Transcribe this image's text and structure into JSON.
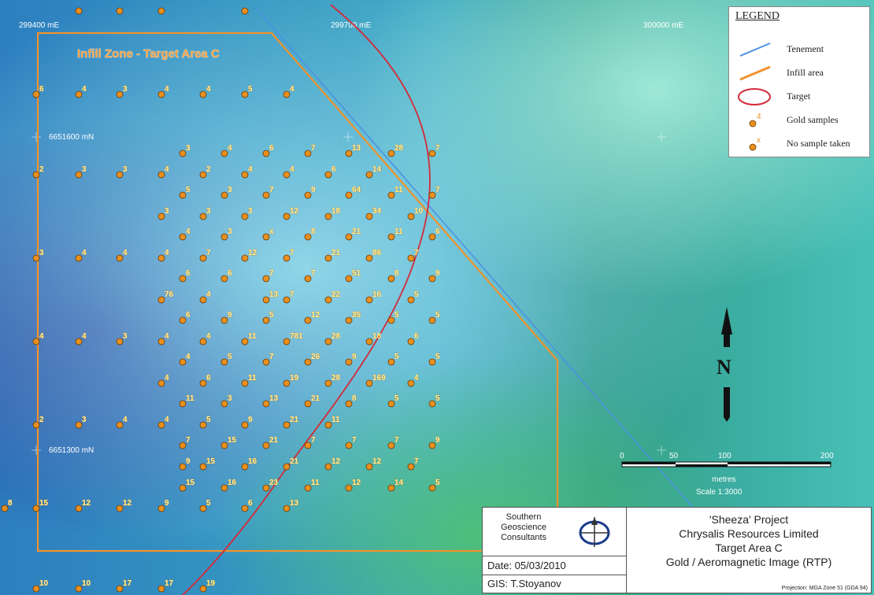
{
  "map": {
    "grid_labels": {
      "easting": [
        "299400 mE",
        "299700 mE",
        "300000 mE"
      ],
      "northing": [
        "6651600 mN",
        "6651300 mN"
      ]
    },
    "zone_title": "Infill Zone - Target Area C",
    "north_arrow_label": "N",
    "scale_bar": {
      "ticks": [
        "0",
        "50",
        "100",
        "200"
      ],
      "unit": "metres",
      "scale_text": "Scale 1:3000"
    },
    "colors": {
      "tenement": "#4a90e2",
      "infill": "#f0922c",
      "target": "#d42a3a",
      "sample_dot": "#e8901e"
    },
    "samples": [
      {
        "v": "6"
      },
      {
        "v": "4"
      },
      {
        "v": "3"
      },
      {
        "v": "4"
      },
      {
        "v": "4"
      },
      {
        "v": "5"
      },
      {
        "v": "4"
      },
      {
        "v": "3"
      },
      {
        "v": "4"
      },
      {
        "v": "6"
      },
      {
        "v": "7"
      },
      {
        "v": "13"
      },
      {
        "v": "28"
      },
      {
        "v": "7"
      },
      {
        "v": "2"
      },
      {
        "v": "3"
      },
      {
        "v": "3"
      },
      {
        "v": "4"
      },
      {
        "v": "2"
      },
      {
        "v": "4"
      },
      {
        "v": "4"
      },
      {
        "v": "6"
      },
      {
        "v": "14"
      },
      {
        "v": "5"
      },
      {
        "v": "3"
      },
      {
        "v": "7"
      },
      {
        "v": "9"
      },
      {
        "v": "64"
      },
      {
        "v": "11"
      },
      {
        "v": "7"
      },
      {
        "v": "3"
      },
      {
        "v": "3"
      },
      {
        "v": "3"
      },
      {
        "v": "12"
      },
      {
        "v": "18"
      },
      {
        "v": "34"
      },
      {
        "v": "10"
      },
      {
        "v": "4"
      },
      {
        "v": "3"
      },
      {
        "v": "x"
      },
      {
        "v": "8"
      },
      {
        "v": "21"
      },
      {
        "v": "11"
      },
      {
        "v": "6"
      },
      {
        "v": "3"
      },
      {
        "v": "4"
      },
      {
        "v": "4"
      },
      {
        "v": "4"
      },
      {
        "v": "7"
      },
      {
        "v": "12"
      },
      {
        "v": "7"
      },
      {
        "v": "21"
      },
      {
        "v": "86"
      },
      {
        "v": "7"
      },
      {
        "v": "6"
      },
      {
        "v": "6"
      },
      {
        "v": "7"
      },
      {
        "v": "7"
      },
      {
        "v": "51"
      },
      {
        "v": "8"
      },
      {
        "v": "9"
      },
      {
        "v": "76"
      },
      {
        "v": "4"
      },
      {
        "v": "13"
      },
      {
        "v": "7"
      },
      {
        "v": "22"
      },
      {
        "v": "16"
      },
      {
        "v": "5"
      },
      {
        "v": "6"
      },
      {
        "v": "9"
      },
      {
        "v": "5"
      },
      {
        "v": "12"
      },
      {
        "v": "35"
      },
      {
        "v": "5"
      },
      {
        "v": "5"
      },
      {
        "v": "4"
      },
      {
        "v": "4"
      },
      {
        "v": "3"
      },
      {
        "v": "4"
      },
      {
        "v": "4"
      },
      {
        "v": "11"
      },
      {
        "v": "781"
      },
      {
        "v": "28"
      },
      {
        "v": "18"
      },
      {
        "v": "6"
      },
      {
        "v": "4"
      },
      {
        "v": "5"
      },
      {
        "v": "7"
      },
      {
        "v": "26"
      },
      {
        "v": "9"
      },
      {
        "v": "5"
      },
      {
        "v": "5"
      },
      {
        "v": "4"
      },
      {
        "v": "6"
      },
      {
        "v": "11"
      },
      {
        "v": "19"
      },
      {
        "v": "28"
      },
      {
        "v": "169"
      },
      {
        "v": "4"
      },
      {
        "v": "11"
      },
      {
        "v": "3"
      },
      {
        "v": "13"
      },
      {
        "v": "21"
      },
      {
        "v": "8"
      },
      {
        "v": "5"
      },
      {
        "v": "5"
      },
      {
        "v": "2"
      },
      {
        "v": "3"
      },
      {
        "v": "4"
      },
      {
        "v": "4"
      },
      {
        "v": "5"
      },
      {
        "v": "9"
      },
      {
        "v": "21"
      },
      {
        "v": "11"
      },
      {
        "v": "7"
      },
      {
        "v": "15"
      },
      {
        "v": "21"
      },
      {
        "v": "7"
      },
      {
        "v": "7"
      },
      {
        "v": "7"
      },
      {
        "v": "9"
      },
      {
        "v": "9"
      },
      {
        "v": "15"
      },
      {
        "v": "16"
      },
      {
        "v": "21"
      },
      {
        "v": "12"
      },
      {
        "v": "12"
      },
      {
        "v": "7"
      },
      {
        "v": "15"
      },
      {
        "v": "16"
      },
      {
        "v": "23"
      },
      {
        "v": "11"
      },
      {
        "v": "12"
      },
      {
        "v": "14"
      },
      {
        "v": "5"
      },
      {
        "v": "8"
      },
      {
        "v": "15"
      },
      {
        "v": "12"
      },
      {
        "v": "12"
      },
      {
        "v": "9"
      },
      {
        "v": "5"
      },
      {
        "v": "6"
      },
      {
        "v": "13"
      },
      {
        "v": "10"
      },
      {
        "v": "10"
      },
      {
        "v": "17"
      },
      {
        "v": "17"
      },
      {
        "v": "19"
      }
    ]
  },
  "legend": {
    "title": "LEGEND",
    "items": [
      {
        "label": "Tenement",
        "icon": "blue-line-icon"
      },
      {
        "label": "Infill area",
        "icon": "orange-line-icon"
      },
      {
        "label": "Target",
        "icon": "red-ellipse-icon"
      },
      {
        "label": "Gold samples",
        "icon": "gold-sample-icon",
        "sample": "4"
      },
      {
        "label": "No sample taken",
        "icon": "no-sample-icon",
        "sample": "x"
      }
    ]
  },
  "title_block": {
    "org": "Southern Geoscience Consultants",
    "date": "Date: 05/03/2010",
    "gis": "GIS: T.Stoyanov",
    "project": "'Sheeza' Project",
    "company": "Chrysalis Resources Limited",
    "area": "Target Area C",
    "subject": "Gold / Aeromagnetic Image (RTP)",
    "projection": "Projection: MGA Zone 51 (GDA 94)"
  }
}
